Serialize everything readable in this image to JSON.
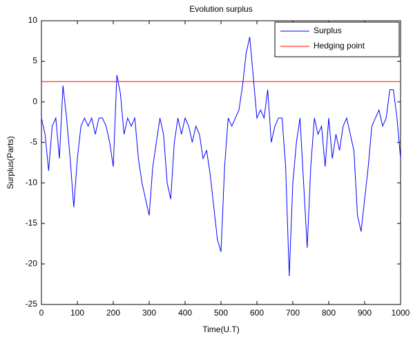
{
  "chart_data": {
    "type": "line",
    "title": "Evolution surplus",
    "x_label": "Time(U.T)",
    "y_label": "Surplus(Parts)",
    "xlim": [
      0,
      1000
    ],
    "xticks": [
      0,
      100,
      200,
      300,
      400,
      500,
      600,
      700,
      800,
      900,
      1000
    ],
    "ylim": [
      -25,
      10
    ],
    "yticks": [
      -25,
      -20,
      -15,
      -10,
      -5,
      0,
      5,
      10
    ],
    "legend": "upper right",
    "series": [
      {
        "name": "Surplus",
        "color": "#0000ff",
        "x": [
          0,
          10,
          20,
          30,
          40,
          50,
          60,
          70,
          80,
          90,
          100,
          110,
          120,
          130,
          140,
          150,
          160,
          170,
          180,
          190,
          200,
          210,
          220,
          230,
          240,
          250,
          260,
          270,
          280,
          290,
          300,
          310,
          320,
          330,
          340,
          350,
          360,
          370,
          380,
          390,
          400,
          410,
          420,
          430,
          440,
          450,
          460,
          470,
          480,
          490,
          500,
          510,
          520,
          530,
          540,
          550,
          560,
          570,
          580,
          590,
          600,
          610,
          620,
          630,
          640,
          650,
          660,
          670,
          680,
          690,
          700,
          710,
          720,
          730,
          740,
          750,
          760,
          770,
          780,
          790,
          800,
          810,
          820,
          830,
          840,
          850,
          860,
          870,
          880,
          890,
          900,
          910,
          920,
          930,
          940,
          950,
          960,
          970,
          980,
          990,
          1000
        ],
        "values": [
          -2,
          -4,
          -8.5,
          -3,
          -2,
          -7,
          2,
          -2,
          -7,
          -13,
          -7,
          -3,
          -2,
          -3,
          -2,
          -4,
          -2,
          -2,
          -3,
          -5,
          -8,
          3.3,
          1,
          -4,
          -2,
          -3,
          -2,
          -7,
          -10,
          -12,
          -14,
          -8,
          -5,
          -2,
          -4,
          -10,
          -12,
          -5,
          -2,
          -4,
          -2,
          -3,
          -5,
          -3,
          -4,
          -7,
          -6,
          -9,
          -13,
          -17,
          -18.5,
          -8,
          -2,
          -3,
          -2,
          -1,
          2,
          6,
          8,
          3,
          -2,
          -1,
          -2,
          1.5,
          -5,
          -3,
          -2,
          -2,
          -8,
          -21.5,
          -10,
          -5,
          -2,
          -10,
          -18,
          -8,
          -2,
          -4,
          -3,
          -8,
          -2,
          -7,
          -4,
          -6,
          -3,
          -2,
          -4,
          -6,
          -14,
          -16,
          -12,
          -8,
          -3,
          -2,
          -1,
          -3,
          -2,
          1.5,
          1.5,
          -2,
          -7
        ]
      },
      {
        "name": "Hedging point",
        "color": "#ff0000",
        "x": [
          0,
          1000
        ],
        "values": [
          2.5,
          2.5
        ]
      }
    ]
  }
}
